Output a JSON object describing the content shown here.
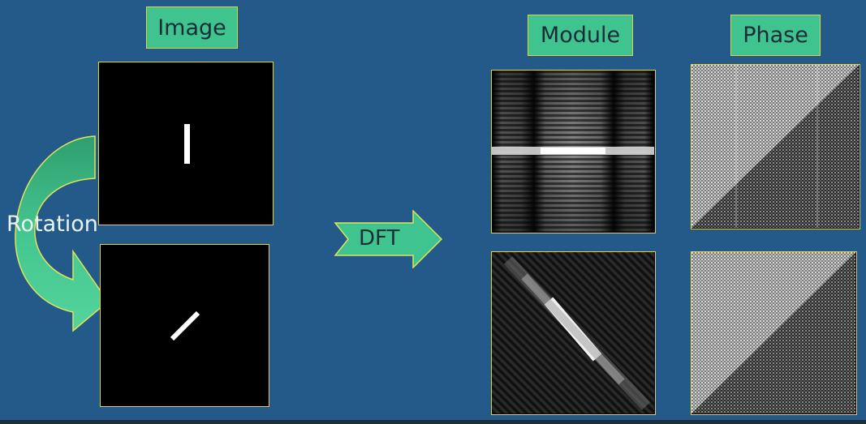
{
  "labels": {
    "image": "Image",
    "module": "Module",
    "phase": "Phase",
    "rotation": "Rotation",
    "dft": "DFT"
  },
  "colors": {
    "background": "#245a89",
    "label_fill": "#3fc48f",
    "label_border": "#e3d238",
    "arrow_fill": "#3fc48f"
  }
}
